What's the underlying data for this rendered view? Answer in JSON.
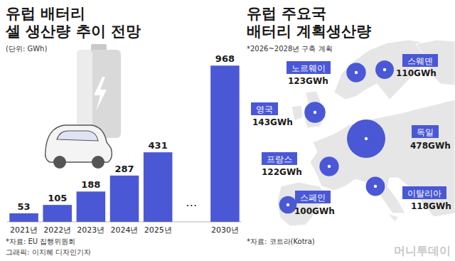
{
  "chart_data": [
    {
      "type": "bar",
      "title": "유럽 배터리\n셀 생산량 추이 전망",
      "subtitle": "(단위: GWh)",
      "categories": [
        "2021년",
        "2022년",
        "2023년",
        "2024년",
        "2025년",
        null,
        "2030년"
      ],
      "values": [
        53,
        105,
        188,
        287,
        431,
        null,
        968
      ],
      "annotation": "…",
      "color": "#4a58d6",
      "ylim": [
        0,
        1000
      ],
      "grid": false,
      "tick_labels": "x",
      "data_labels": true,
      "source": "*자료: EU 집행위원회",
      "credit": "그래픽: 이지혜 디자인기자"
    },
    {
      "type": "bubble_map",
      "title": "유럽 주요국\n배터리 계획생산량",
      "subtitle": "*2026~2028년 구축 계획",
      "categories": [
        "노르웨이",
        "스웨덴",
        "영국",
        "독일",
        "프랑스",
        "이탈리아",
        "스페인"
      ],
      "values": [
        123,
        110,
        143,
        478,
        122,
        118,
        100
      ],
      "value_labels": [
        "123GWh",
        "110GWh",
        "143GWh",
        "478GWh",
        "122GWh",
        "118GWh",
        "100GWh"
      ],
      "color": "#4a58d6",
      "data_labels": true,
      "source": "*자료: 코트라(Kotra)",
      "watermark": "머니투데이"
    }
  ]
}
